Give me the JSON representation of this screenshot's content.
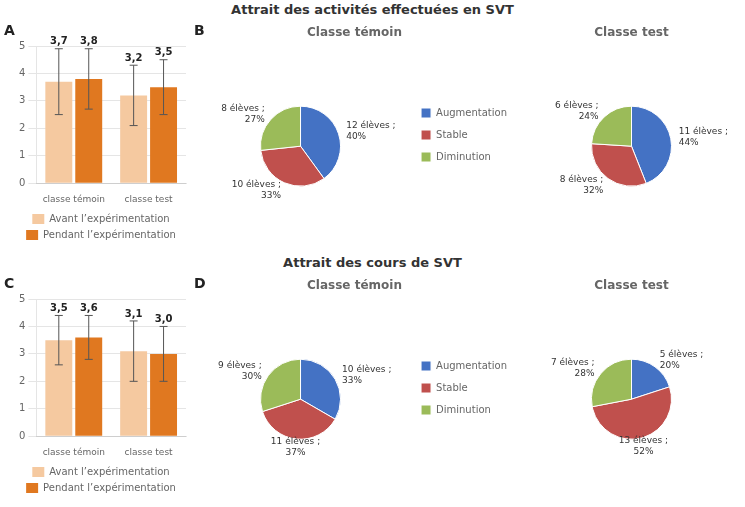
{
  "chart_data": [
    {
      "type": "bar",
      "title": "Attrait des activités effectuées en SVT",
      "annotations": [
        "A"
      ],
      "categories": [
        "classe témoin",
        "classe test"
      ],
      "series": [
        {
          "name": "Avant l’expérimentation",
          "color": "#F5C9A0",
          "values": [
            3.7,
            3.2
          ],
          "errors": [
            1.2,
            1.1
          ],
          "value_labels": [
            "3,7",
            "3,2"
          ]
        },
        {
          "name": "Pendant l’expérimentation",
          "color": "#E07820",
          "values": [
            3.8,
            3.5
          ],
          "errors": [
            1.1,
            1.0
          ],
          "value_labels": [
            "3,8",
            "3,5"
          ]
        }
      ],
      "ylim": [
        0,
        5
      ],
      "yticks": [
        0,
        1,
        2,
        3,
        4,
        5
      ],
      "grid": true,
      "legend": "bottom",
      "data_labels": true
    },
    {
      "type": "pie",
      "title": "Classe témoin",
      "annotations": [
        "B"
      ],
      "categories": [
        "Augmentation",
        "Stable",
        "Diminution"
      ],
      "values": [
        12,
        10,
        8
      ],
      "value_labels": [
        "12 élèves ;\n40%",
        "10 élèves ;\n33%",
        "8 élèves ;\n27%"
      ],
      "colors": [
        "#4472C4",
        "#C0504D",
        "#9BBB59"
      ],
      "legend": "right",
      "data_labels": true
    },
    {
      "type": "pie",
      "title": "Classe test",
      "categories": [
        "Augmentation",
        "Stable",
        "Diminution"
      ],
      "values": [
        11,
        8,
        6
      ],
      "value_labels": [
        "11 élèves ;\n44%",
        "8 élèves ;\n32%",
        "6 élèves ;\n24%"
      ],
      "colors": [
        "#4472C4",
        "#C0504D",
        "#9BBB59"
      ],
      "data_labels": true
    },
    {
      "type": "bar",
      "title": "Attrait des cours de SVT",
      "annotations": [
        "C"
      ],
      "categories": [
        "classe témoin",
        "classe test"
      ],
      "series": [
        {
          "name": "Avant l’expérimentation",
          "color": "#F5C9A0",
          "values": [
            3.5,
            3.1
          ],
          "errors": [
            0.9,
            1.1
          ],
          "value_labels": [
            "3,5",
            "3,1"
          ]
        },
        {
          "name": "Pendant l’expérimentation",
          "color": "#E07820",
          "values": [
            3.6,
            3.0
          ],
          "errors": [
            0.8,
            1.0
          ],
          "value_labels": [
            "3,6",
            "3,0"
          ]
        }
      ],
      "ylim": [
        0,
        5
      ],
      "yticks": [
        0,
        1,
        2,
        3,
        4,
        5
      ],
      "grid": true,
      "legend": "bottom",
      "data_labels": true
    },
    {
      "type": "pie",
      "title": "Classe témoin",
      "annotations": [
        "D"
      ],
      "categories": [
        "Augmentation",
        "Stable",
        "Diminution"
      ],
      "values": [
        10,
        11,
        9
      ],
      "value_labels": [
        "10 élèves ;\n33%",
        "11 élèves ;\n37%",
        "9 élèves ;\n30%"
      ],
      "colors": [
        "#4472C4",
        "#C0504D",
        "#9BBB59"
      ],
      "legend": "right",
      "data_labels": true
    },
    {
      "type": "pie",
      "title": "Classe test",
      "categories": [
        "Augmentation",
        "Stable",
        "Diminution"
      ],
      "values": [
        5,
        13,
        7
      ],
      "value_labels": [
        "5 élèves ;\n20%",
        "13 élèves ;\n52%",
        "7 élèves ;\n28%"
      ],
      "colors": [
        "#4472C4",
        "#C0504D",
        "#9BBB59"
      ],
      "data_labels": true
    }
  ]
}
